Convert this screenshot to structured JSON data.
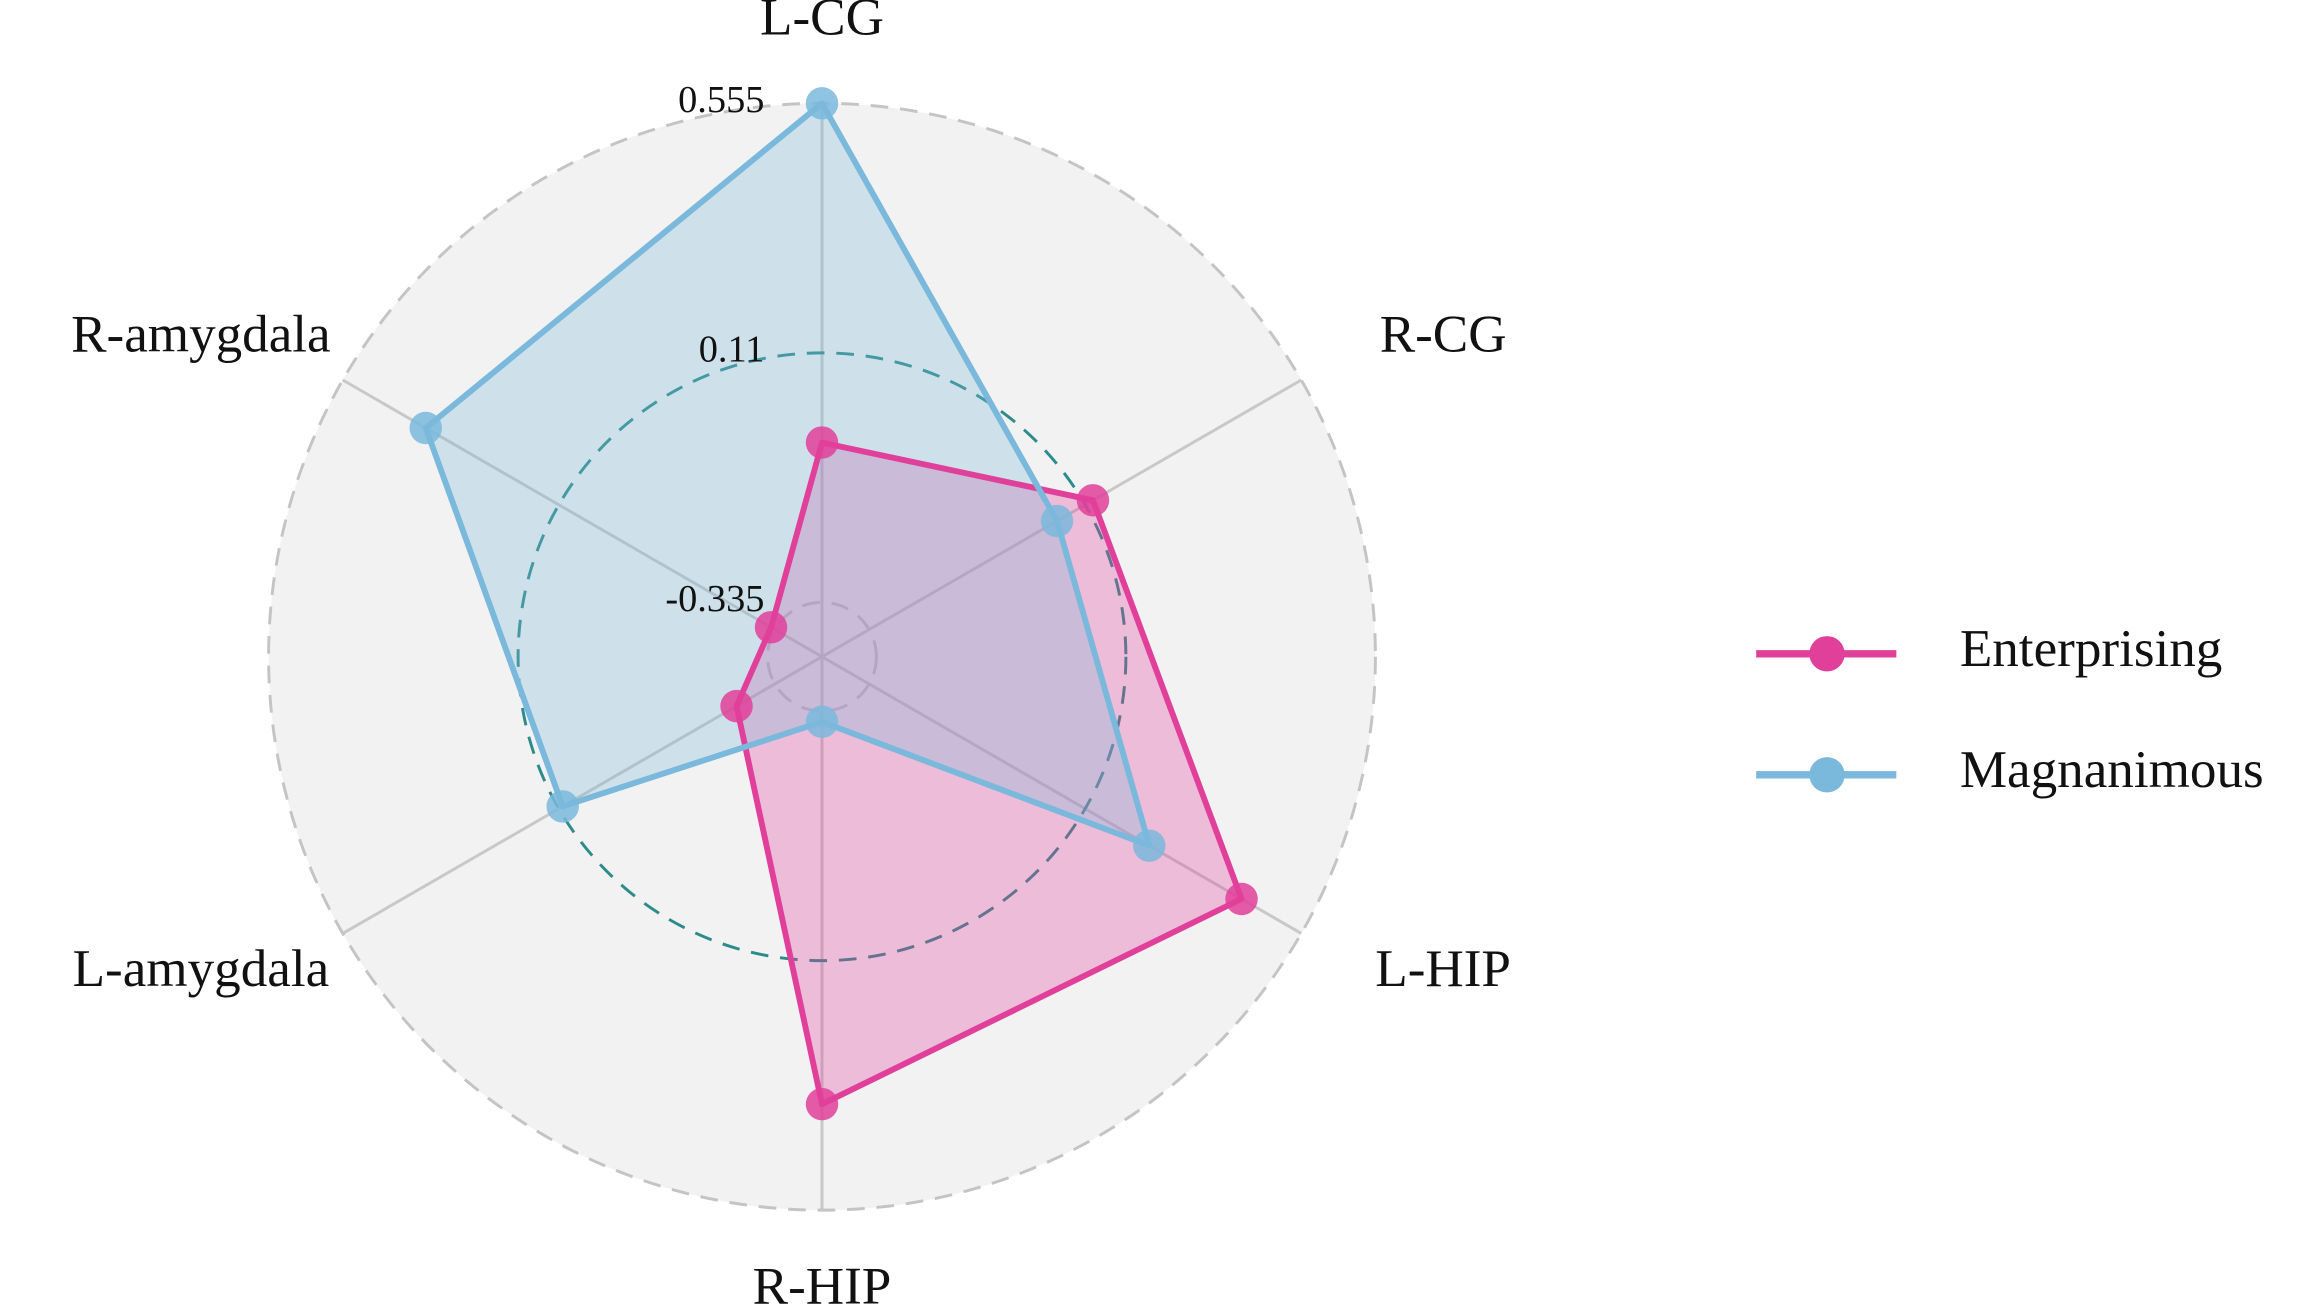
{
  "chart_data": {
    "type": "radar",
    "categories": [
      "L-CG",
      "R-CG",
      "L-HIP",
      "R-HIP",
      "L-amygdala",
      "R-amygdala"
    ],
    "series": [
      {
        "name": "Enterprising",
        "color": "#e0409a",
        "values": [
          -0.05,
          0.126,
          0.432,
          0.366,
          -0.256,
          -0.327
        ]
      },
      {
        "name": "Magnanimous",
        "color": "#7ab8dc",
        "values": [
          0.555,
          0.052,
          0.242,
          -0.316,
          0.102,
          0.384
        ]
      }
    ],
    "ylim": [
      -0.432,
      0.555
    ],
    "yticks": [
      -0.335,
      0.11,
      0.555
    ],
    "grid": true,
    "legend": "right"
  }
}
